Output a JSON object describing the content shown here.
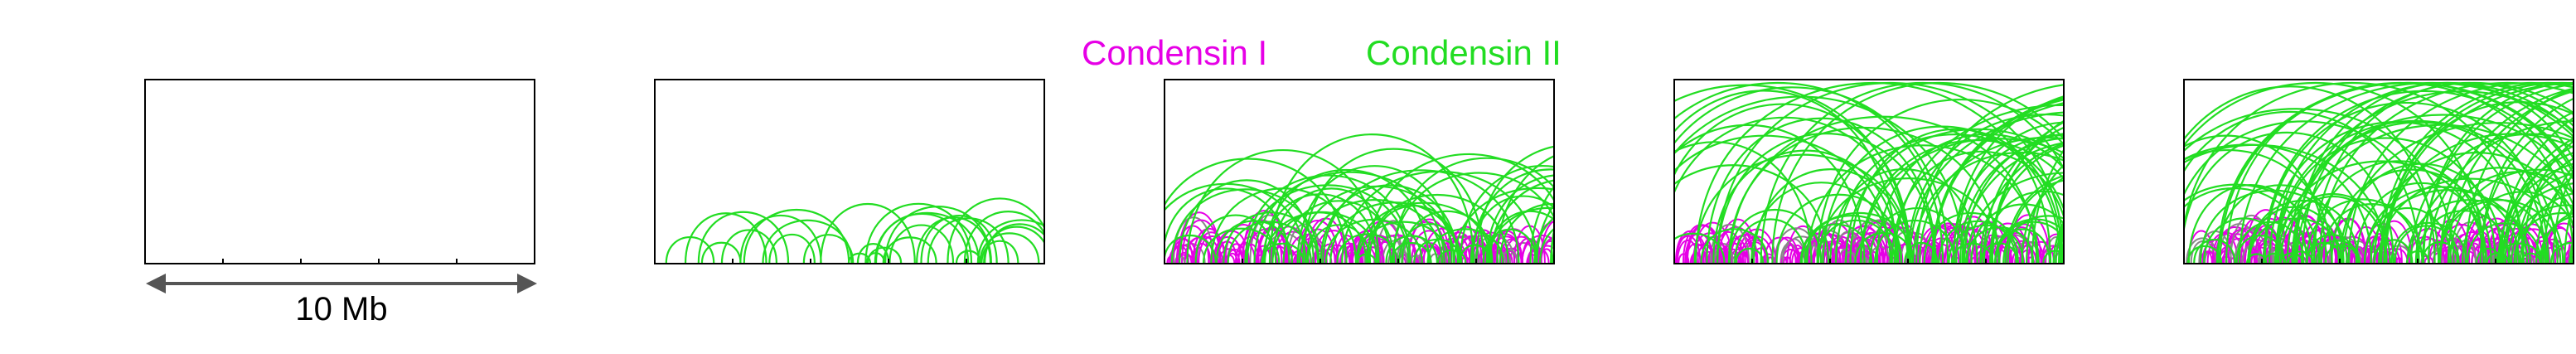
{
  "legend": {
    "condensin1_label": "Condensin I",
    "condensin2_label": "Condensin II",
    "condensin1_color": "#e600e6",
    "condensin2_color": "#22dd22"
  },
  "scale_bar": {
    "label": "10 Mb"
  },
  "colors": {
    "frame": "#000000",
    "arrow": "#555555"
  },
  "panels": [
    {
      "id": "panel-1",
      "condensin1_loops": 0,
      "condensin2_loops": 0,
      "condensin2_max_span": 0.0
    },
    {
      "id": "panel-2",
      "condensin1_loops": 0,
      "condensin2_loops": 32,
      "condensin2_max_span": 0.28
    },
    {
      "id": "panel-3",
      "condensin1_loops": 170,
      "condensin2_loops": 70,
      "condensin2_max_span": 0.55
    },
    {
      "id": "panel-4",
      "condensin1_loops": 190,
      "condensin2_loops": 95,
      "condensin2_max_span": 0.95
    },
    {
      "id": "panel-5",
      "condensin1_loops": 190,
      "condensin2_loops": 120,
      "condensin2_max_span": 1.0
    }
  ]
}
